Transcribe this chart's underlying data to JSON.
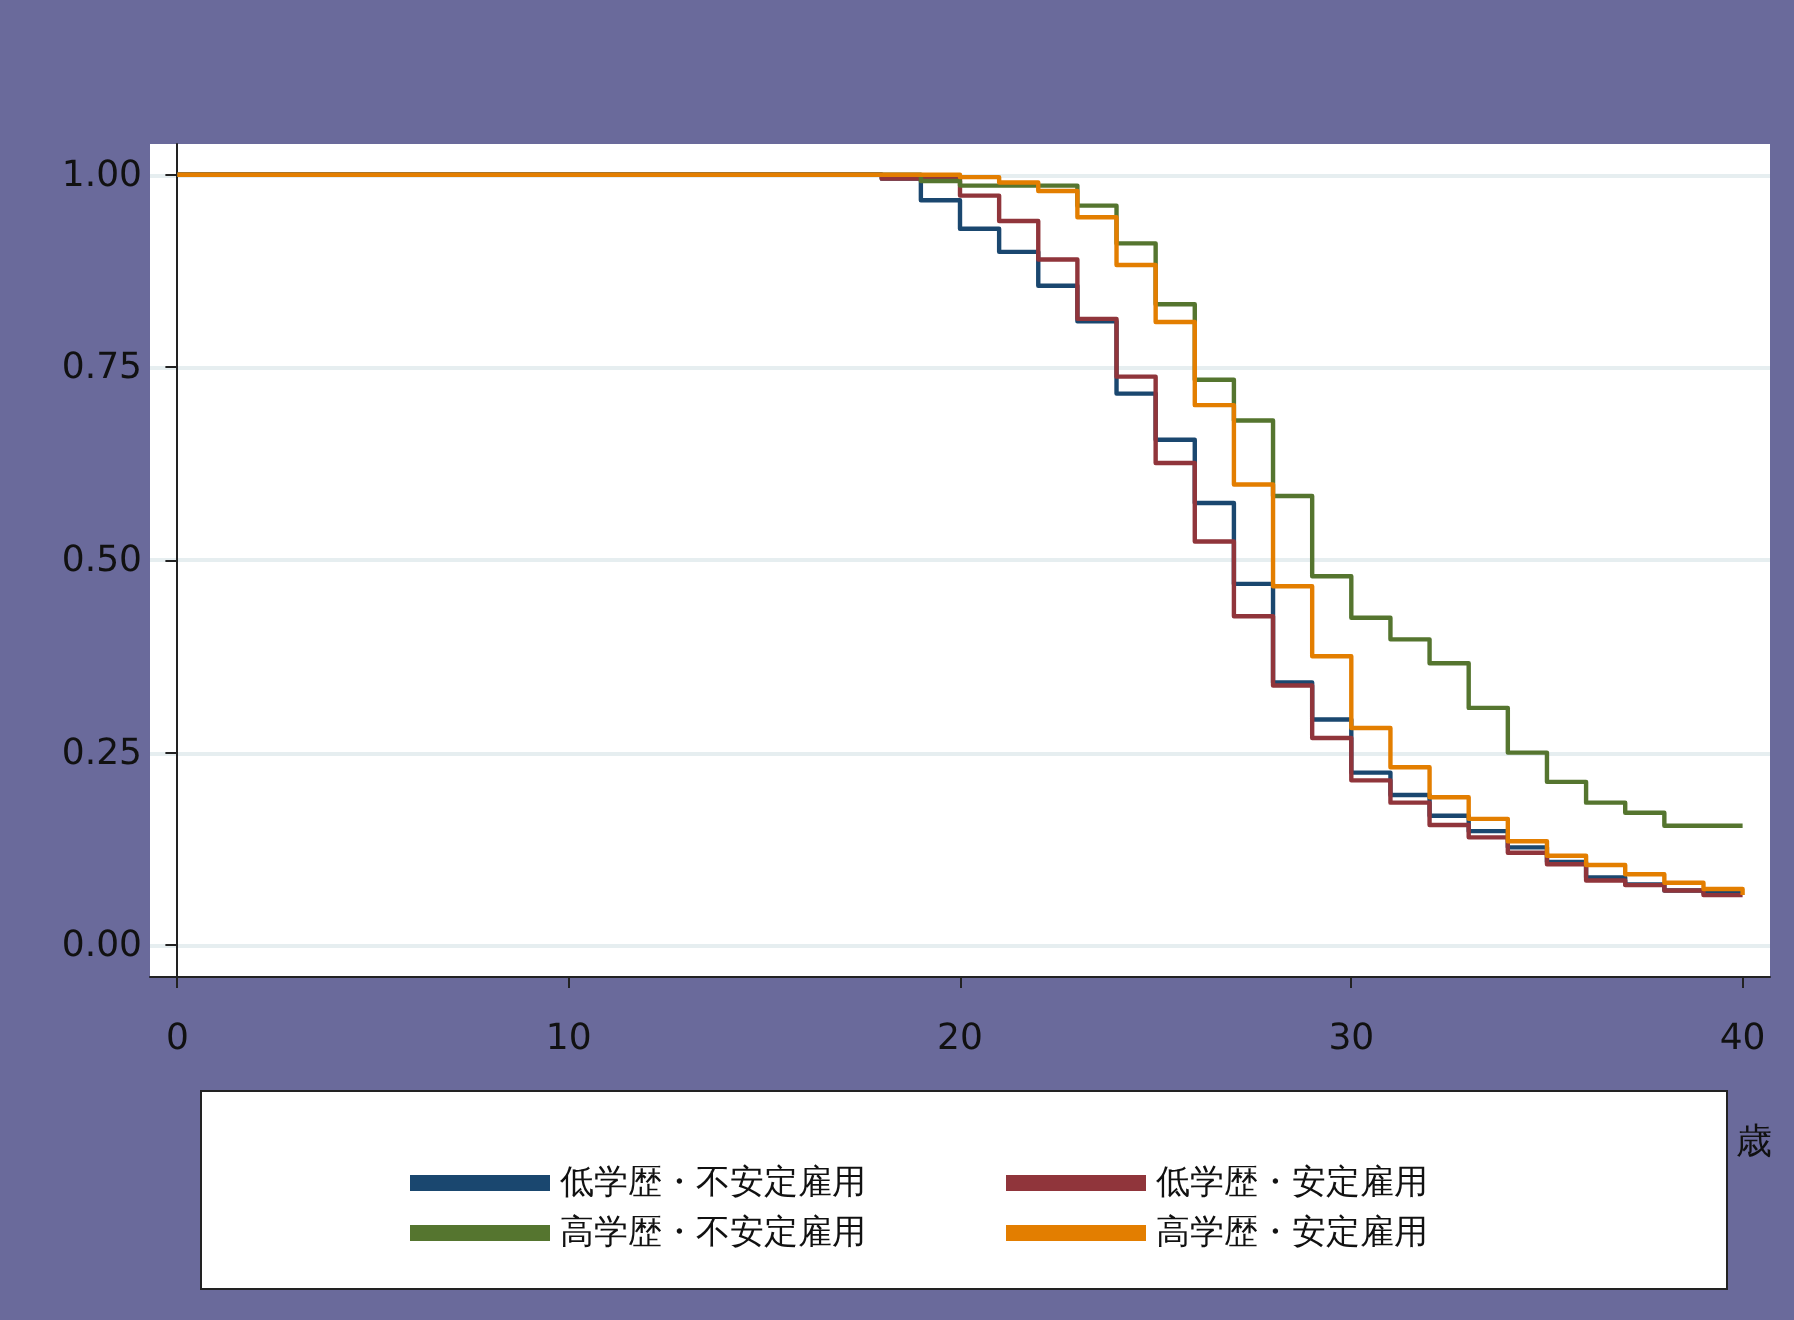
{
  "chart_data": {
    "type": "step",
    "xlabel": "歳",
    "xlim": [
      -0.7,
      40.7
    ],
    "xticks": [
      0,
      10,
      20,
      30,
      40
    ],
    "ylim": [
      -0.04,
      1.04
    ],
    "yticks": [
      {
        "value": 0,
        "label": "0.00"
      },
      {
        "value": 0.25,
        "label": "0.25"
      },
      {
        "value": 0.5,
        "label": "0.50"
      },
      {
        "value": 0.75,
        "label": "0.75"
      },
      {
        "value": 1,
        "label": "1.00"
      }
    ],
    "grid": "y",
    "legend": "bottom",
    "series": [
      {
        "name": "低学歴・不安定雇用",
        "color": "#1a476f",
        "x": [
          0,
          18,
          19,
          20,
          21,
          22,
          23,
          24,
          25,
          26,
          27,
          28,
          29,
          30,
          31,
          32,
          33,
          34,
          35,
          36,
          37,
          38,
          39,
          40
        ],
        "values": [
          1,
          0.995,
          0.967,
          0.93,
          0.9,
          0.856,
          0.81,
          0.716,
          0.656,
          0.574,
          0.469,
          0.341,
          0.293,
          0.224,
          0.195,
          0.168,
          0.148,
          0.127,
          0.108,
          0.088,
          0.079,
          0.071,
          0.068,
          0.068
        ]
      },
      {
        "name": "低学歴・安定雇用",
        "color": "#90353b",
        "x": [
          0,
          18,
          19,
          20,
          21,
          22,
          23,
          24,
          25,
          26,
          27,
          28,
          29,
          30,
          31,
          32,
          33,
          34,
          35,
          36,
          37,
          38,
          39,
          40
        ],
        "values": [
          1,
          0.995,
          0.995,
          0.973,
          0.94,
          0.89,
          0.813,
          0.738,
          0.626,
          0.524,
          0.427,
          0.337,
          0.269,
          0.214,
          0.185,
          0.156,
          0.14,
          0.12,
          0.105,
          0.084,
          0.078,
          0.071,
          0.065,
          0.065
        ]
      },
      {
        "name": "高学歴・不安定雇用",
        "color": "#55752f",
        "x": [
          0,
          19,
          20,
          21,
          22,
          23,
          24,
          25,
          26,
          27,
          28,
          29,
          30,
          31,
          32,
          33,
          34,
          35,
          36,
          37,
          38,
          39,
          40
        ],
        "values": [
          1,
          0.992,
          0.986,
          0.986,
          0.986,
          0.96,
          0.911,
          0.832,
          0.734,
          0.681,
          0.583,
          0.479,
          0.425,
          0.397,
          0.366,
          0.308,
          0.25,
          0.212,
          0.185,
          0.172,
          0.155,
          0.155,
          0.155
        ]
      },
      {
        "name": "高学歴・安定雇用",
        "color": "#e37e00",
        "x": [
          0,
          20,
          21,
          22,
          23,
          24,
          25,
          26,
          27,
          28,
          29,
          30,
          31,
          32,
          33,
          34,
          35,
          36,
          37,
          38,
          39,
          40
        ],
        "values": [
          1,
          0.997,
          0.99,
          0.979,
          0.945,
          0.883,
          0.809,
          0.701,
          0.598,
          0.466,
          0.375,
          0.282,
          0.231,
          0.192,
          0.164,
          0.135,
          0.116,
          0.104,
          0.092,
          0.081,
          0.073,
          0.065
        ]
      }
    ]
  }
}
